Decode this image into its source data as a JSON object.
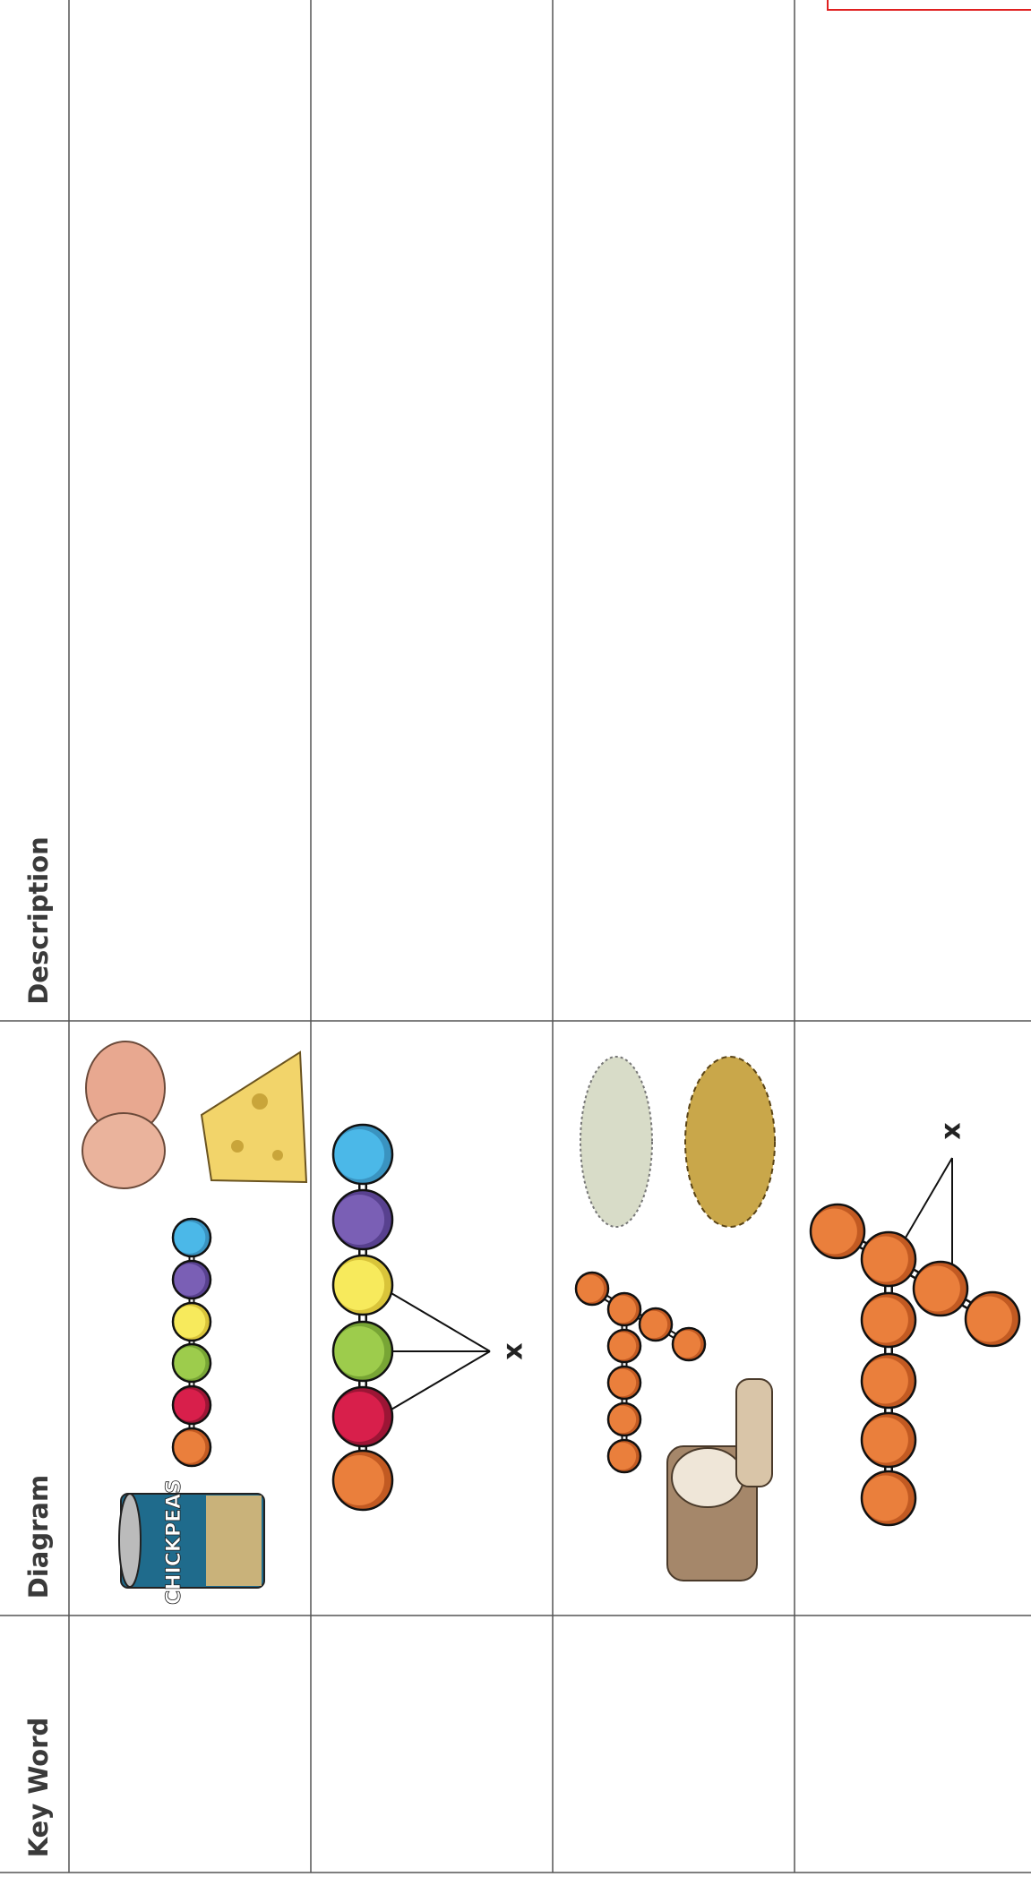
{
  "table": {
    "headers": [
      "Key Word",
      "Diagram",
      "Description"
    ]
  },
  "diagram_labels": {
    "chickpeas_can": "CHICKPEAS",
    "polypeptide_x": "x",
    "branched_x": "x"
  }
}
